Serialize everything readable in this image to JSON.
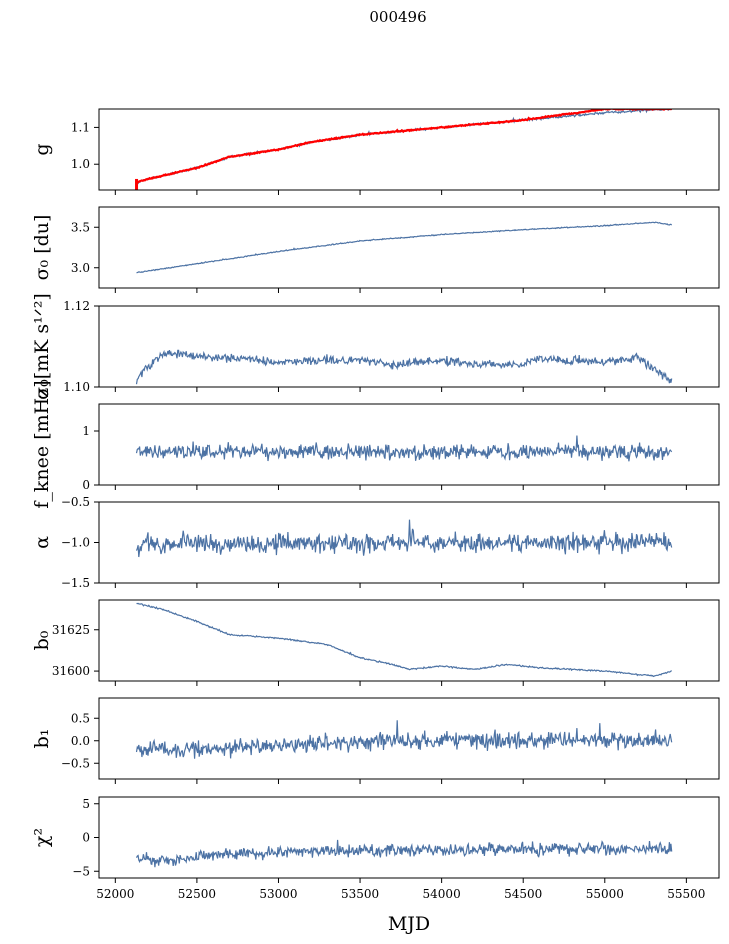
{
  "chart_data": {
    "type": "line",
    "title": "000496",
    "xlabel": "MJD",
    "xlim": [
      51900,
      55700
    ],
    "xticks": [
      52000,
      52500,
      53000,
      53500,
      54000,
      54500,
      55000,
      55500
    ],
    "xtick_labels": [
      "52000",
      "52500",
      "53000",
      "53500",
      "54000",
      "54500",
      "55000",
      "55500"
    ],
    "x_start": 52130,
    "x_end": 55410,
    "colors": {
      "series": "#4c72a4",
      "highlight": "#ff0000"
    },
    "panels": [
      {
        "id": "g",
        "ylabel": "g",
        "ylim": [
          0.93,
          1.15
        ],
        "yticks": [
          1.0,
          1.1
        ],
        "ytick_labels": [
          "1.0",
          "1.1"
        ],
        "series": [
          {
            "name": "gain",
            "color": "#4c72a4",
            "noise": 0.002,
            "profile": [
              [
                52130,
                0.95
              ],
              [
                52200,
                0.96
              ],
              [
                52500,
                0.99
              ],
              [
                52700,
                1.02
              ],
              [
                53000,
                1.04
              ],
              [
                53200,
                1.06
              ],
              [
                53500,
                1.08
              ],
              [
                54000,
                1.1
              ],
              [
                54500,
                1.12
              ],
              [
                55000,
                1.14
              ],
              [
                55410,
                1.15
              ]
            ]
          },
          {
            "name": "gain-model",
            "color": "#ff0000",
            "noise": 0.001,
            "profile": [
              [
                52130,
                0.95
              ],
              [
                52200,
                0.96
              ],
              [
                52500,
                0.99
              ],
              [
                52700,
                1.02
              ],
              [
                53000,
                1.04
              ],
              [
                53200,
                1.06
              ],
              [
                53500,
                1.08
              ],
              [
                54000,
                1.1
              ],
              [
                54500,
                1.12
              ],
              [
                55000,
                1.15
              ],
              [
                55410,
                1.15
              ]
            ],
            "spike": {
              "x": 52130,
              "y0": 0.93,
              "y1": 0.96
            }
          }
        ]
      },
      {
        "id": "sigma0-du",
        "ylabel": "σ₀ [du]",
        "ylim": [
          2.75,
          3.75
        ],
        "yticks": [
          3.0,
          3.5
        ],
        "ytick_labels": [
          "3.0",
          "3.5"
        ],
        "series": [
          {
            "name": "sigma0",
            "color": "#4c72a4",
            "noise": 0.004,
            "profile": [
              [
                52130,
                2.94
              ],
              [
                52500,
                3.05
              ],
              [
                53000,
                3.2
              ],
              [
                53500,
                3.33
              ],
              [
                54000,
                3.41
              ],
              [
                54500,
                3.47
              ],
              [
                55000,
                3.52
              ],
              [
                55300,
                3.56
              ],
              [
                55410,
                3.53
              ]
            ]
          }
        ]
      },
      {
        "id": "sigma0-mk",
        "ylabel": "σ₀[mK s¹ᐟ²]",
        "ylim": [
          1.1,
          1.12
        ],
        "yticks": [
          1.1,
          1.12
        ],
        "ytick_labels": [
          "1.10",
          "1.12"
        ],
        "series": [
          {
            "name": "sigma0-calibrated",
            "color": "#4c72a4",
            "noise": 0.0007,
            "profile": [
              [
                52130,
                1.1015
              ],
              [
                52150,
                1.103
              ],
              [
                52300,
                1.1085
              ],
              [
                52500,
                1.1075
              ],
              [
                52800,
                1.107
              ],
              [
                53000,
                1.106
              ],
              [
                53500,
                1.107
              ],
              [
                53700,
                1.1055
              ],
              [
                54000,
                1.1065
              ],
              [
                54300,
                1.1055
              ],
              [
                54500,
                1.1055
              ],
              [
                54600,
                1.107
              ],
              [
                55000,
                1.106
              ],
              [
                55200,
                1.1075
              ],
              [
                55400,
                1.1015
              ]
            ]
          }
        ]
      },
      {
        "id": "fknee",
        "ylabel": "f_knee [mHz]",
        "ylim": [
          0,
          1.5
        ],
        "yticks": [
          0,
          1
        ],
        "ytick_labels": [
          "0",
          "1"
        ],
        "series": [
          {
            "name": "fknee",
            "color": "#4c72a4",
            "noise": 0.09,
            "profile": [
              [
                52130,
                0.62
              ],
              [
                55410,
                0.62
              ]
            ]
          }
        ]
      },
      {
        "id": "alpha",
        "ylabel": "α",
        "ylim": [
          -1.5,
          -0.5
        ],
        "yticks": [
          -1.5,
          -1.0,
          -0.5
        ],
        "ytick_labels": [
          "−1.5",
          "−1.0",
          "−0.5"
        ],
        "series": [
          {
            "name": "alpha",
            "color": "#4c72a4",
            "noise": 0.08,
            "profile": [
              [
                52130,
                -1.02
              ],
              [
                55410,
                -1.0
              ]
            ]
          }
        ]
      },
      {
        "id": "b0",
        "ylabel": "b₀",
        "ylim": [
          31594,
          31643
        ],
        "yticks": [
          31600,
          31625
        ],
        "ytick_labels": [
          "31600",
          "31625"
        ],
        "series": [
          {
            "name": "b0",
            "color": "#4c72a4",
            "noise": 0.3,
            "profile": [
              [
                52130,
                31641
              ],
              [
                52300,
                31637
              ],
              [
                52500,
                31630
              ],
              [
                52700,
                31622
              ],
              [
                53000,
                31620
              ],
              [
                53300,
                31616
              ],
              [
                53500,
                31608
              ],
              [
                53700,
                31604
              ],
              [
                53800,
                31601
              ],
              [
                54000,
                31603
              ],
              [
                54200,
                31601
              ],
              [
                54400,
                31604
              ],
              [
                54600,
                31602
              ],
              [
                55000,
                31600
              ],
              [
                55300,
                31597
              ],
              [
                55410,
                31600
              ]
            ]
          }
        ]
      },
      {
        "id": "b1",
        "ylabel": "b₁",
        "ylim": [
          -0.85,
          0.95
        ],
        "yticks": [
          -0.5,
          0.0,
          0.5
        ],
        "ytick_labels": [
          "−0.5",
          "0.0",
          "0.5"
        ],
        "series": [
          {
            "name": "b1",
            "color": "#4c72a4",
            "noise": 0.12,
            "profile": [
              [
                52130,
                -0.15
              ],
              [
                52400,
                -0.2
              ],
              [
                53000,
                -0.08
              ],
              [
                54000,
                0.0
              ],
              [
                55000,
                0.02
              ],
              [
                55410,
                0.0
              ]
            ]
          }
        ]
      },
      {
        "id": "chi2",
        "ylabel": "χ²",
        "ylim": [
          -6,
          6
        ],
        "yticks": [
          -5,
          0,
          5
        ],
        "ytick_labels": [
          "−5",
          "0",
          "5"
        ],
        "series": [
          {
            "name": "chi2",
            "color": "#4c72a4",
            "noise": 0.6,
            "profile": [
              [
                52130,
                -3.0
              ],
              [
                52300,
                -3.5
              ],
              [
                52600,
                -2.6
              ],
              [
                53000,
                -2.2
              ],
              [
                54000,
                -1.8
              ],
              [
                55000,
                -1.6
              ],
              [
                55410,
                -1.7
              ]
            ]
          }
        ]
      }
    ]
  }
}
